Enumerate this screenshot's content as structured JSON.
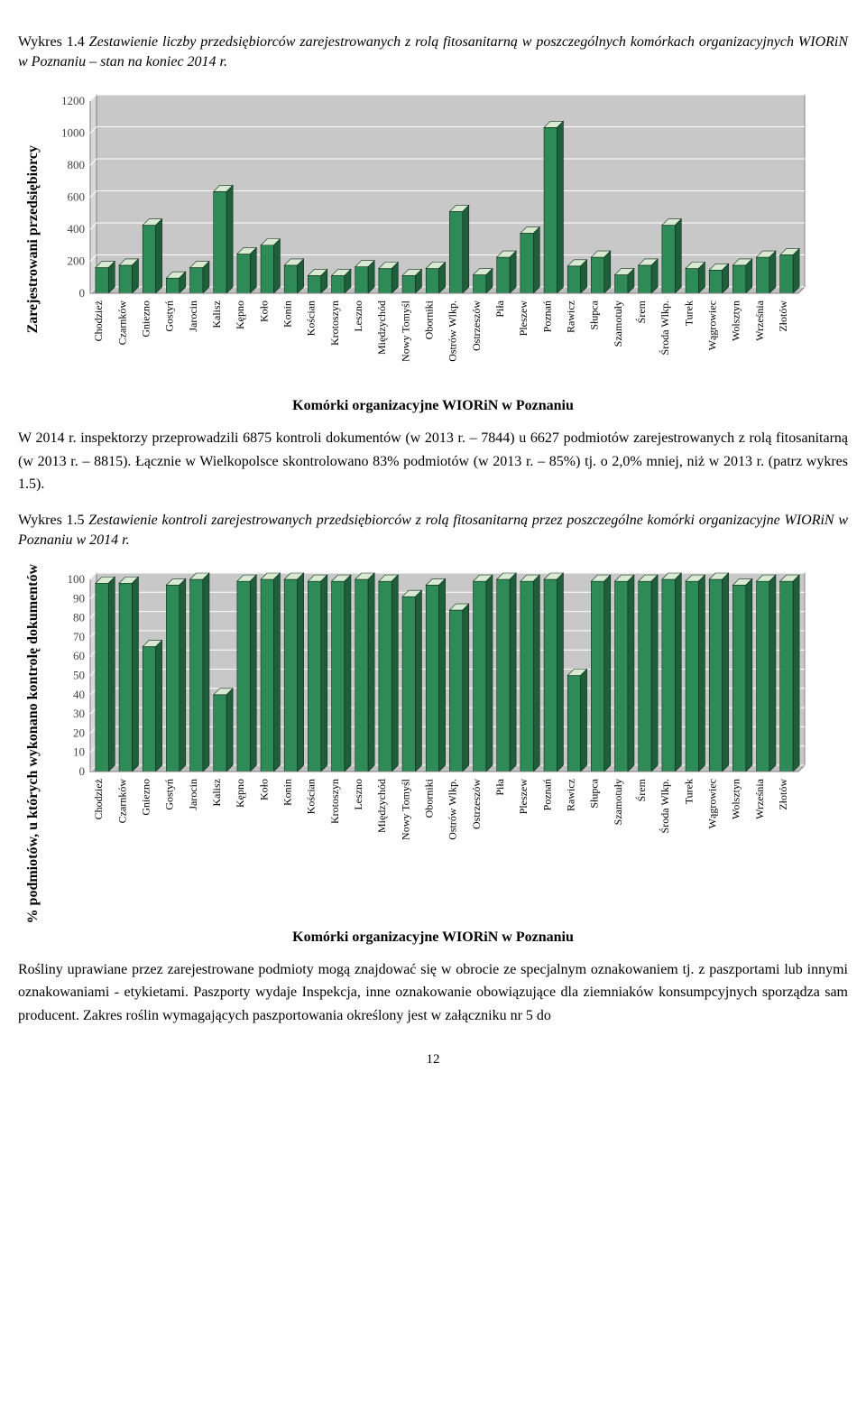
{
  "captions": {
    "c1_label": "Wykres 1.4",
    "c1_text": "Zestawienie liczby przedsiębiorców zarejestrowanych z rolą fitosanitarną w poszczególnych komórkach organizacyjnych WIORiN w Poznaniu – stan na koniec 2014 r.",
    "c2_label": "Wykres 1.5",
    "c2_text": "Zestawienie kontroli zarejestrowanych przedsiębiorców z rolą fitosanitarną przez poszczególne komórki organizacyjne WIORiN w Poznaniu w 2014 r."
  },
  "paragraphs": {
    "p1": "W 2014 r. inspektorzy przeprowadzili 6875 kontroli dokumentów (w 2013 r. – 7844) u 6627 podmiotów zarejestrowanych z rolą fitosanitarną (w 2013 r. – 8815). Łącznie w Wielkopolsce skontrolowano 83% podmiotów (w 2013 r. – 85%) tj. o 2,0% mniej, niż w 2013 r. (patrz wykres 1.5).",
    "p2": "Rośliny uprawiane przez zarejestrowane podmioty mogą znajdować się w obrocie ze specjalnym oznakowaniem tj. z paszportami lub innymi oznakowaniami - etykietami. Paszporty wydaje Inspekcja, inne oznakowanie obowiązujące dla ziemniaków konsumpcyjnych sporządza sam producent. Zakres roślin wymagających paszportowania określony jest w załączniku nr 5 do"
  },
  "page_number": "12",
  "categories": [
    "Chodzież",
    "Czarnków",
    "Gniezno",
    "Gostyń",
    "Jarocin",
    "Kalisz",
    "Kępno",
    "Koło",
    "Konin",
    "Kościan",
    "Krotoszyn",
    "Leszno",
    "Międzychód",
    "Nowy Tomyśl",
    "Oborniki",
    "Ostrów Wlkp.",
    "Ostrzeszów",
    "Piła",
    "Pleszew",
    "Poznań",
    "Rawicz",
    "Słupca",
    "Szamotuły",
    "Śrem",
    "Środa Wlkp.",
    "Turek",
    "Wągrowiec",
    "Wolsztyn",
    "Września",
    "Złotów"
  ],
  "chart1": {
    "type": "bar",
    "y_title": "Zarejestrowani przedsiębiorcy",
    "x_title": "Komórki organizacyjne WIORiN w Poznaniu",
    "ylim": [
      0,
      1200
    ],
    "ytick_step": 200,
    "yticks": [
      0,
      200,
      400,
      600,
      800,
      1000,
      1200
    ],
    "values": [
      160,
      175,
      425,
      95,
      160,
      635,
      245,
      300,
      175,
      110,
      110,
      165,
      155,
      110,
      155,
      510,
      115,
      225,
      375,
      1035,
      170,
      225,
      115,
      175,
      425,
      155,
      145,
      175,
      225,
      240
    ],
    "bar_fill": "#2e8b57",
    "bar_top": "#d9ead3",
    "bar_side": "#1f5e3a",
    "bar_stroke": "#0d2a1a",
    "plot_bg": "#d9d9d9",
    "plot_border": "#808080",
    "grid_color": "#ffffff",
    "floor_color": "#bfbfbf",
    "back_wall": "#c8c8c8",
    "tick_color": "#444",
    "bar_width": 0.55,
    "depth": 7
  },
  "chart2": {
    "type": "bar",
    "y_title": "% podmiotów, u których wykonano kontrolę dokumentów",
    "x_title": "Komórki organizacyjne WIORiN w Poznaniu",
    "ylim": [
      0,
      100
    ],
    "ytick_step": 10,
    "yticks": [
      0,
      10,
      20,
      30,
      40,
      50,
      60,
      70,
      80,
      90,
      100
    ],
    "values": [
      98,
      98,
      65,
      97,
      100,
      40,
      99,
      100,
      100,
      99,
      99,
      100,
      99,
      91,
      97,
      84,
      99,
      100,
      99,
      100,
      50,
      99,
      99,
      99,
      100,
      99,
      100,
      97,
      99,
      99
    ],
    "bar_fill": "#2e8b57",
    "bar_top": "#d9ead3",
    "bar_side": "#1f5e3a",
    "bar_stroke": "#0d2a1a",
    "plot_bg": "#d9d9d9",
    "plot_border": "#808080",
    "grid_color": "#ffffff",
    "floor_color": "#bfbfbf",
    "back_wall": "#c8c8c8",
    "tick_color": "#444",
    "bar_width": 0.55,
    "depth": 7
  }
}
